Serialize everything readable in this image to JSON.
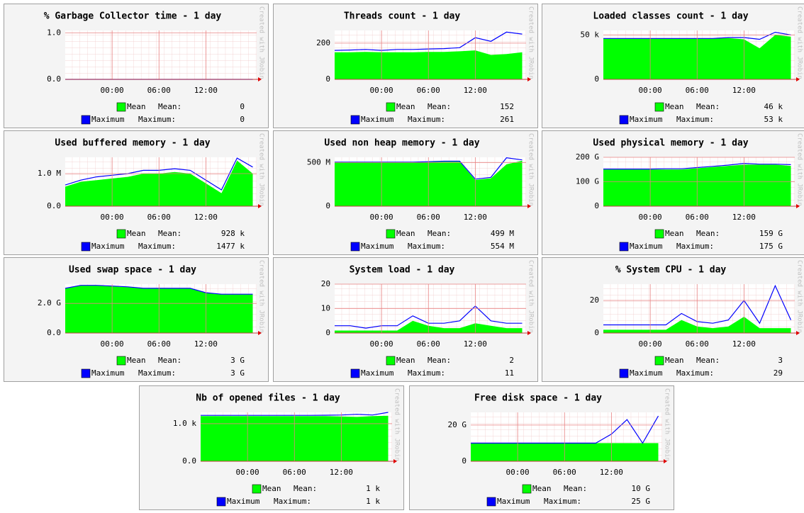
{
  "chart_data": [
    {
      "type": "area",
      "title": "% Garbage Collector time - 1 day",
      "credit": "Created with JRobin",
      "x": [
        0,
        2,
        4,
        6,
        8,
        10,
        12,
        14,
        16,
        18,
        20,
        22,
        24
      ],
      "xlim": [
        0,
        24.5
      ],
      "xticks": [
        {
          "value": 6,
          "label": "00:00"
        },
        {
          "value": 12,
          "label": "06:00"
        },
        {
          "value": 18,
          "label": "12:00"
        }
      ],
      "ylim": [
        0,
        1.05
      ],
      "yticks": [
        {
          "value": 0,
          "label": "0.0"
        },
        {
          "value": 1,
          "label": "1.0"
        }
      ],
      "series": [
        {
          "name": "Mean",
          "color": "#00ff00",
          "values": [
            0,
            0,
            0,
            0,
            0,
            0,
            0,
            0,
            0,
            0,
            0,
            0,
            0
          ],
          "summary_label": "Mean:",
          "summary": 0
        },
        {
          "name": "Maximum",
          "color": "#0000ff",
          "values": [
            0,
            0,
            0,
            0,
            0,
            0,
            0,
            0,
            0,
            0,
            0,
            0,
            0
          ],
          "summary_label": "Maximum:",
          "summary": 0
        }
      ]
    },
    {
      "type": "area",
      "title": "Threads count - 1 day",
      "credit": "Created with JRobin",
      "x": [
        0,
        2,
        4,
        6,
        8,
        10,
        12,
        14,
        16,
        18,
        20,
        22,
        24
      ],
      "xlim": [
        0,
        24.5
      ],
      "xticks": [
        {
          "value": 6,
          "label": "00:00"
        },
        {
          "value": 12,
          "label": "06:00"
        },
        {
          "value": 18,
          "label": "12:00"
        }
      ],
      "ylim": [
        0,
        270
      ],
      "yticks": [
        0,
        200
      ],
      "series": [
        {
          "name": "Mean",
          "color": "#00ff00",
          "values": [
            150,
            150,
            152,
            150,
            150,
            150,
            152,
            152,
            155,
            160,
            135,
            140,
            150
          ],
          "summary_label": "Mean:",
          "summary": 152
        },
        {
          "name": "Maximum",
          "color": "#0000ff",
          "values": [
            160,
            162,
            165,
            160,
            165,
            165,
            168,
            170,
            175,
            230,
            210,
            261,
            250
          ],
          "summary_label": "Maximum:",
          "summary": 261
        }
      ]
    },
    {
      "type": "area",
      "title": "Loaded classes count - 1 day",
      "credit": "Created with JRobin",
      "x": [
        0,
        2,
        4,
        6,
        8,
        10,
        12,
        14,
        16,
        18,
        20,
        22,
        24
      ],
      "xlim": [
        0,
        24.5
      ],
      "xticks": [
        {
          "value": 6,
          "label": "00:00"
        },
        {
          "value": 12,
          "label": "06:00"
        },
        {
          "value": 18,
          "label": "12:00"
        }
      ],
      "ylim": [
        0,
        55000
      ],
      "yticks": [
        0,
        {
          "value": 50000,
          "label": "50 k"
        }
      ],
      "series": [
        {
          "name": "Mean",
          "color": "#00ff00",
          "values": [
            46000,
            46000,
            46000,
            46000,
            46000,
            46000,
            46000,
            46000,
            46500,
            45000,
            35000,
            50000,
            48000
          ],
          "summary_label": "Mean:",
          "summary": 46000,
          "summary_text": "46 k"
        },
        {
          "name": "Maximum",
          "color": "#0000ff",
          "values": [
            46000,
            46000,
            46000,
            46000,
            46000,
            46000,
            46000,
            46000,
            47000,
            47000,
            45000,
            53000,
            50000
          ],
          "summary_label": "Maximum:",
          "summary": 53000,
          "summary_text": "53 k"
        }
      ]
    },
    {
      "type": "area",
      "title": "Used buffered memory - 1 day",
      "credit": "Created with JRobin",
      "x": [
        0,
        2,
        4,
        6,
        8,
        10,
        12,
        14,
        16,
        18,
        20,
        22,
        24
      ],
      "xlim": [
        0,
        24.5
      ],
      "xticks": [
        {
          "value": 6,
          "label": "00:00"
        },
        {
          "value": 12,
          "label": "06:00"
        },
        {
          "value": 18,
          "label": "12:00"
        }
      ],
      "ylim": [
        0,
        1500000
      ],
      "yticks": [
        {
          "value": 0,
          "label": "0.0"
        },
        {
          "value": 1000000,
          "label": "1.0 M"
        }
      ],
      "series": [
        {
          "name": "Mean",
          "color": "#00ff00",
          "values": [
            600000,
            750000,
            800000,
            850000,
            900000,
            1000000,
            1000000,
            1050000,
            1000000,
            700000,
            400000,
            1400000,
            1000000
          ],
          "summary_label": "Mean:",
          "summary": 928000,
          "summary_text": "928 k"
        },
        {
          "name": "Maximum",
          "color": "#0000ff",
          "values": [
            650000,
            800000,
            900000,
            950000,
            1000000,
            1100000,
            1100000,
            1150000,
            1100000,
            800000,
            500000,
            1477000,
            1200000
          ],
          "summary_label": "Maximum:",
          "summary": 1477000,
          "summary_text": "1477 k"
        }
      ]
    },
    {
      "type": "area",
      "title": "Used non heap memory - 1 day",
      "credit": "Created with JRobin",
      "x": [
        0,
        2,
        4,
        6,
        8,
        10,
        12,
        14,
        16,
        18,
        20,
        22,
        24
      ],
      "xlim": [
        0,
        24.5
      ],
      "xticks": [
        {
          "value": 6,
          "label": "00:00"
        },
        {
          "value": 12,
          "label": "06:00"
        },
        {
          "value": 18,
          "label": "12:00"
        }
      ],
      "ylim": [
        0,
        560000000
      ],
      "yticks": [
        0,
        {
          "value": 500000000,
          "label": "500 M"
        }
      ],
      "series": [
        {
          "name": "Mean",
          "color": "#00ff00",
          "values": [
            500000000.0,
            500000000.0,
            500000000.0,
            500000000.0,
            500000000.0,
            500000000.0,
            505000000.0,
            510000000.0,
            510000000.0,
            300000000.0,
            320000000.0,
            480000000.0,
            520000000.0
          ],
          "summary_label": "Mean:",
          "summary": 499000000,
          "summary_text": "499 M"
        },
        {
          "name": "Maximum",
          "color": "#0000ff",
          "values": [
            505000000.0,
            505000000.0,
            505000000.0,
            505000000.0,
            505000000.0,
            505000000.0,
            510000000.0,
            515000000.0,
            515000000.0,
            310000000.0,
            330000000.0,
            554000000.0,
            530000000.0
          ],
          "summary_label": "Maximum:",
          "summary": 554000000,
          "summary_text": "554 M"
        }
      ]
    },
    {
      "type": "area",
      "title": "Used physical memory - 1 day",
      "credit": "Created with JRobin",
      "x": [
        0,
        2,
        4,
        6,
        8,
        10,
        12,
        14,
        16,
        18,
        20,
        22,
        24
      ],
      "xlim": [
        0,
        24.5
      ],
      "xticks": [
        {
          "value": 6,
          "label": "00:00"
        },
        {
          "value": 12,
          "label": "06:00"
        },
        {
          "value": 18,
          "label": "12:00"
        }
      ],
      "ylim": [
        0,
        200000000000
      ],
      "yticks": [
        0,
        {
          "value": 100000000000,
          "label": "100 G"
        },
        {
          "value": 200000000000,
          "label": "200 G"
        }
      ],
      "series": [
        {
          "name": "Mean",
          "color": "#00ff00",
          "values": [
            150000000000.0,
            150000000000.0,
            150000000000.0,
            150000000000.0,
            150000000000.0,
            150000000000.0,
            155000000000.0,
            160000000000.0,
            165000000000.0,
            170000000000.0,
            170000000000.0,
            170000000000.0,
            165000000000.0
          ],
          "summary_label": "Mean:",
          "summary": 159000000000,
          "summary_text": "159 G"
        },
        {
          "name": "Maximum",
          "color": "#0000ff",
          "values": [
            152000000000.0,
            152000000000.0,
            152000000000.0,
            152000000000.0,
            153000000000.0,
            153000000000.0,
            158000000000.0,
            163000000000.0,
            168000000000.0,
            175000000000.0,
            172000000000.0,
            172000000000.0,
            170000000000.0
          ],
          "summary_label": "Maximum:",
          "summary": 175000000000,
          "summary_text": "175 G"
        }
      ]
    },
    {
      "type": "area",
      "title": "Used swap space - 1 day",
      "credit": "Created with JRobin",
      "x": [
        0,
        2,
        4,
        6,
        8,
        10,
        12,
        14,
        16,
        18,
        20,
        22,
        24
      ],
      "xlim": [
        0,
        24.5
      ],
      "xticks": [
        {
          "value": 6,
          "label": "00:00"
        },
        {
          "value": 12,
          "label": "06:00"
        },
        {
          "value": 18,
          "label": "12:00"
        }
      ],
      "ylim": [
        0,
        3300000000
      ],
      "yticks": [
        {
          "value": 0,
          "label": "0.0"
        },
        {
          "value": 2000000000,
          "label": "2.0 G"
        }
      ],
      "series": [
        {
          "name": "Mean",
          "color": "#00ff00",
          "values": [
            3000000000.0,
            3200000000.0,
            3200000000.0,
            3150000000.0,
            3100000000.0,
            3000000000.0,
            3000000000.0,
            3000000000.0,
            3000000000.0,
            2700000000.0,
            2600000000.0,
            2600000000.0,
            2600000000.0
          ],
          "summary_label": "Mean:",
          "summary": 3000000000,
          "summary_text": "3 G"
        },
        {
          "name": "Maximum",
          "color": "#0000ff",
          "values": [
            3020000000.0,
            3220000000.0,
            3220000000.0,
            3170000000.0,
            3120000000.0,
            3020000000.0,
            3020000000.0,
            3020000000.0,
            3020000000.0,
            2720000000.0,
            2620000000.0,
            2620000000.0,
            2620000000.0
          ],
          "summary_label": "Maximum:",
          "summary": 3000000000,
          "summary_text": "3 G"
        }
      ]
    },
    {
      "type": "area",
      "title": "System load - 1 day",
      "credit": "Created with JRobin",
      "x": [
        0,
        2,
        4,
        6,
        8,
        10,
        12,
        14,
        16,
        18,
        20,
        22,
        24
      ],
      "xlim": [
        0,
        24.5
      ],
      "xticks": [
        {
          "value": 6,
          "label": "00:00"
        },
        {
          "value": 12,
          "label": "06:00"
        },
        {
          "value": 18,
          "label": "12:00"
        }
      ],
      "ylim": [
        0,
        20
      ],
      "yticks": [
        0,
        10,
        20
      ],
      "series": [
        {
          "name": "Mean",
          "color": "#00ff00",
          "values": [
            1,
            1,
            1,
            1,
            1,
            5,
            3,
            2,
            2,
            4,
            3,
            2,
            2
          ],
          "summary_label": "Mean:",
          "summary": 2
        },
        {
          "name": "Maximum",
          "color": "#0000ff",
          "values": [
            3,
            3,
            2,
            3,
            3,
            7,
            4,
            4,
            5,
            11,
            5,
            4,
            4
          ],
          "summary_label": "Maximum:",
          "summary": 11
        }
      ]
    },
    {
      "type": "area",
      "title": "% System CPU - 1 day",
      "credit": "Created with JRobin",
      "x": [
        0,
        2,
        4,
        6,
        8,
        10,
        12,
        14,
        16,
        18,
        20,
        22,
        24
      ],
      "xlim": [
        0,
        24.5
      ],
      "xticks": [
        {
          "value": 6,
          "label": "00:00"
        },
        {
          "value": 12,
          "label": "06:00"
        },
        {
          "value": 18,
          "label": "12:00"
        }
      ],
      "ylim": [
        0,
        30
      ],
      "yticks": [
        0,
        20
      ],
      "series": [
        {
          "name": "Mean",
          "color": "#00ff00",
          "values": [
            2,
            2,
            2,
            2,
            2,
            8,
            4,
            3,
            4,
            10,
            3,
            3,
            3
          ],
          "summary_label": "Mean:",
          "summary": 3
        },
        {
          "name": "Maximum",
          "color": "#0000ff",
          "values": [
            5,
            5,
            5,
            5,
            5,
            12,
            7,
            6,
            8,
            20,
            6,
            29,
            8
          ],
          "summary_label": "Maximum:",
          "summary": 29
        }
      ]
    },
    {
      "type": "area",
      "title": "Nb of opened files - 1 day",
      "credit": "Created with JRobin",
      "x": [
        0,
        2,
        4,
        6,
        8,
        10,
        12,
        14,
        16,
        18,
        20,
        22,
        24
      ],
      "xlim": [
        0,
        24.5
      ],
      "xticks": [
        {
          "value": 6,
          "label": "00:00"
        },
        {
          "value": 12,
          "label": "06:00"
        },
        {
          "value": 18,
          "label": "12:00"
        }
      ],
      "ylim": [
        0,
        1300
      ],
      "yticks": [
        {
          "value": 0,
          "label": "0.0"
        },
        {
          "value": 1000,
          "label": "1.0 k"
        }
      ],
      "series": [
        {
          "name": "Mean",
          "color": "#00ff00",
          "values": [
            1200,
            1200,
            1200,
            1200,
            1200,
            1200,
            1200,
            1200,
            1200,
            1190,
            1180,
            1200,
            1210
          ],
          "summary_label": "Mean:",
          "summary": 1000,
          "summary_text": "1 k"
        },
        {
          "name": "Maximum",
          "color": "#0000ff",
          "values": [
            1220,
            1220,
            1220,
            1220,
            1220,
            1220,
            1220,
            1220,
            1225,
            1230,
            1250,
            1230,
            1300
          ],
          "summary_label": "Maximum:",
          "summary": 1000,
          "summary_text": "1 k"
        }
      ]
    },
    {
      "type": "area",
      "title": "Free disk space - 1 day",
      "credit": "Created with JRobin",
      "x": [
        0,
        2,
        4,
        6,
        8,
        10,
        12,
        14,
        16,
        18,
        20,
        22,
        24
      ],
      "xlim": [
        0,
        24.5
      ],
      "xticks": [
        {
          "value": 6,
          "label": "00:00"
        },
        {
          "value": 12,
          "label": "06:00"
        },
        {
          "value": 18,
          "label": "12:00"
        }
      ],
      "ylim": [
        0,
        27000000000
      ],
      "yticks": [
        0,
        {
          "value": 20000000000,
          "label": "20 G"
        }
      ],
      "series": [
        {
          "name": "Mean",
          "color": "#00ff00",
          "values": [
            10000000000.0,
            10000000000.0,
            10000000000.0,
            10000000000.0,
            10000000000.0,
            10000000000.0,
            10000000000.0,
            10000000000.0,
            10000000000.0,
            10000000000.0,
            10000000000.0,
            10000000000.0,
            10000000000.0
          ],
          "summary_label": "Mean:",
          "summary": 10000000000,
          "summary_text": "10 G"
        },
        {
          "name": "Maximum",
          "color": "#0000ff",
          "values": [
            10000000000.0,
            10000000000.0,
            10000000000.0,
            10000000000.0,
            10000000000.0,
            10000000000.0,
            10000000000.0,
            10000000000.0,
            10000000000.0,
            15000000000.0,
            23000000000.0,
            10000000000.0,
            25000000000.0
          ],
          "summary_label": "Maximum:",
          "summary": 25000000000,
          "summary_text": "25 G"
        }
      ]
    }
  ]
}
